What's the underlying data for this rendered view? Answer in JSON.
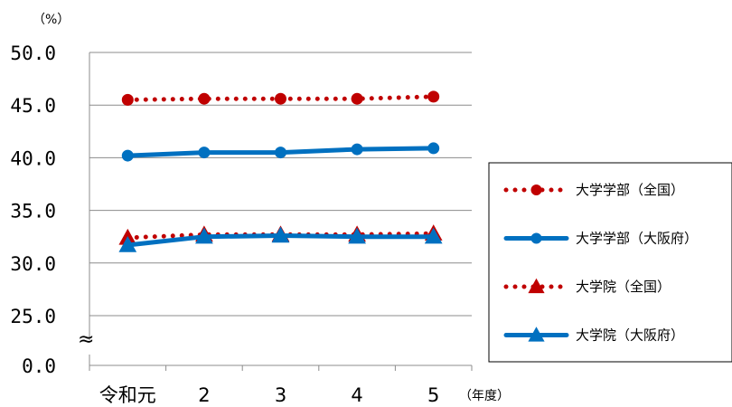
{
  "chart_data": {
    "type": "line",
    "title": "",
    "y_unit": "（%）",
    "x_unit": "（年度）",
    "ylabel": "",
    "xlabel": "",
    "ylim": [
      25,
      50
    ],
    "y_axis_break": true,
    "y_break_symbol": "≈",
    "y_ticks": [
      "50.0",
      "45.0",
      "40.0",
      "35.0",
      "30.0",
      "25.0",
      "0.0"
    ],
    "categories": [
      "令和元",
      "2",
      "3",
      "4",
      "5"
    ],
    "grid": true,
    "legend_position": "right",
    "series": [
      {
        "name": "大学学部（全国）",
        "values": [
          45.5,
          45.6,
          45.6,
          45.6,
          45.8
        ],
        "color": "#c00000",
        "line": "dotted",
        "marker": "circle"
      },
      {
        "name": "大学学部（大阪府）",
        "values": [
          40.2,
          40.5,
          40.5,
          40.8,
          40.9
        ],
        "color": "#0070c0",
        "line": "solid",
        "marker": "circle"
      },
      {
        "name": "大学院（全国）",
        "values": [
          32.4,
          32.7,
          32.7,
          32.7,
          32.8
        ],
        "color": "#c00000",
        "line": "dotted",
        "marker": "triangle"
      },
      {
        "name": "大学院（大阪府）",
        "values": [
          31.7,
          32.5,
          32.6,
          32.5,
          32.5
        ],
        "color": "#0070c0",
        "line": "solid",
        "marker": "triangle"
      }
    ]
  }
}
